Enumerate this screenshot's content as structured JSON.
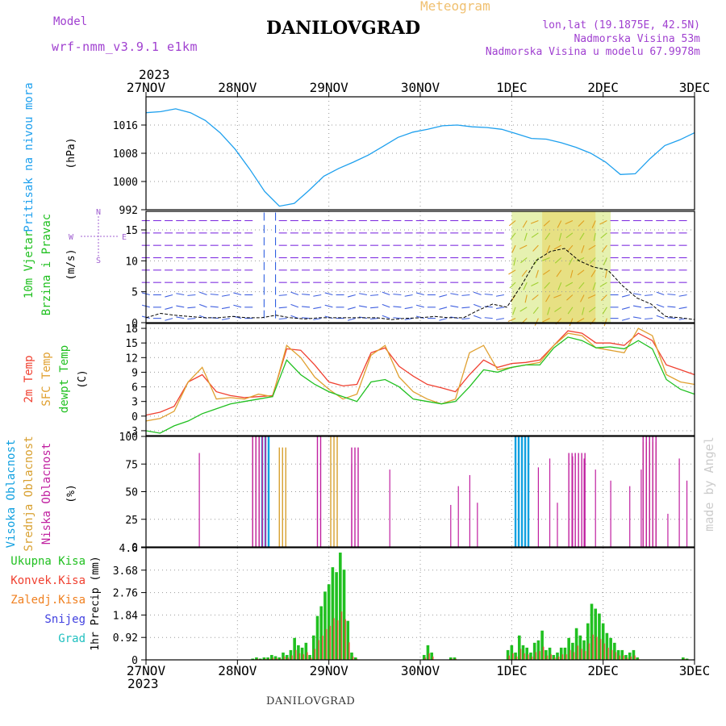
{
  "header": {
    "model_label": "Model",
    "model_name": "wrf-nmm_v3.9.1 e1km",
    "title": "DANILOVGRAD",
    "meteogram_label": "Meteogram",
    "lonlat": "lon,lat (19.1875E, 42.5N)",
    "elevation": "Nadmorska Visina 53m",
    "model_elevation": "Nadmorska Visina u modelu 67.9978m",
    "year_top": "2023",
    "year_bottom": "2023",
    "footer_station": "DANILOVGRAD",
    "credit": "made by Angel"
  },
  "colors": {
    "pressure": "#1ea0ee",
    "temp2m": "#f04030",
    "sfc_temp": "#e0a030",
    "dewpoint": "#20c020",
    "high_cloud": "#10a0e0",
    "mid_cloud": "#d8a030",
    "low_cloud": "#c020a0",
    "total_precip": "#20c020",
    "convective_precip": "#f04030",
    "freezing_precip": "#f08020",
    "snow": "#4040e0",
    "hail": "#20c0c0",
    "label_purple": "#9040d0"
  },
  "chart_data": [
    {
      "type": "line",
      "name": "pressure",
      "ylabel_main": "Pritisak na nivou mora",
      "unit": "(hPa)",
      "ylim": [
        992,
        1024
      ],
      "yticks": [
        "992",
        "1000",
        "1008",
        "1016"
      ],
      "xticks": [
        "27NOV",
        "28NOV",
        "29NOV",
        "30NOV",
        "1DEC",
        "2DEC",
        "3DEC"
      ],
      "grid": true,
      "series": [
        {
          "values": [
            1019.5,
            1019.8,
            1020.6,
            1019.5,
            1017.3,
            1013.8,
            1009.2,
            1003.5,
            997.2,
            993.0,
            993.8,
            997.5,
            1001.5,
            1003.7,
            1005.5,
            1007.5,
            1010.0,
            1012.5,
            1014.0,
            1014.8,
            1015.8,
            1016.0,
            1015.5,
            1015.3,
            1014.8,
            1013.5,
            1012.2,
            1012.0,
            1011.0,
            1009.7,
            1008.0,
            1005.5,
            1002.0,
            1002.2,
            1006.5,
            1010.2,
            1011.8,
            1013.8
          ]
        }
      ]
    },
    {
      "type": "line",
      "name": "wind",
      "ylabel_a": "10m Vjetar",
      "ylabel_b": "Brzina i Pravac",
      "unit": "(m/s)",
      "compass": [
        "N",
        "E",
        "S",
        "W"
      ],
      "ylim": [
        0,
        18
      ],
      "yticks": [
        "0",
        "5",
        "10",
        "15"
      ],
      "grid": true,
      "series": [
        {
          "values": [
            0.8,
            1.5,
            1.2,
            1.0,
            0.8,
            0.8,
            1.0,
            0.8,
            0.8,
            1.2,
            0.8,
            0.6,
            0.8,
            0.8,
            0.8,
            0.8,
            0.8,
            0.5,
            0.7,
            0.8,
            1.0,
            0.8,
            0.8,
            2.0,
            3.0,
            2.5,
            6.0,
            10.0,
            11.5,
            12.0,
            10.0,
            9.0,
            8.5,
            6.0,
            4.0,
            3.0,
            1.0,
            0.8,
            0.5
          ]
        }
      ]
    },
    {
      "type": "line",
      "name": "temperature",
      "ylabel_a": "2m Temp",
      "ylabel_b": "SFC Temp",
      "ylabel_c": "dewpt Temp",
      "unit": "(C)",
      "ylim": [
        -4,
        19
      ],
      "yticks": [
        "-3",
        "0",
        "3",
        "6",
        "9",
        "12",
        "15",
        "18"
      ],
      "grid": true,
      "series": [
        {
          "name": "2m Temp",
          "values": [
            0.2,
            0.8,
            2.0,
            7.0,
            8.5,
            5.0,
            4.2,
            3.8,
            4.0,
            4.2,
            13.8,
            13.5,
            10.5,
            7.0,
            6.2,
            6.5,
            13.0,
            14.0,
            10.2,
            8.2,
            6.5,
            5.8,
            5.0,
            8.5,
            11.5,
            10.0,
            10.8,
            11.0,
            11.5,
            14.5,
            17.5,
            17.0,
            15.0,
            15.0,
            14.5,
            17.0,
            15.5,
            10.5,
            9.5,
            8.5
          ]
        },
        {
          "name": "SFC Temp",
          "values": [
            -1.0,
            -0.5,
            1.0,
            7.0,
            10.0,
            3.5,
            3.8,
            3.5,
            4.5,
            4.0,
            14.5,
            12.0,
            8.0,
            5.5,
            3.5,
            4.5,
            12.5,
            14.5,
            8.0,
            5.0,
            3.5,
            2.5,
            3.5,
            13.0,
            14.5,
            9.5,
            10.0,
            10.5,
            11.0,
            14.5,
            17.0,
            16.5,
            14.0,
            13.5,
            13.0,
            18.0,
            16.5,
            8.5,
            7.0,
            6.5
          ]
        },
        {
          "name": "dewpt Temp",
          "values": [
            -3.0,
            -3.5,
            -2.0,
            -1.0,
            0.5,
            1.5,
            2.5,
            3.0,
            3.5,
            4.0,
            11.5,
            8.5,
            6.5,
            5.0,
            4.0,
            3.0,
            7.0,
            7.5,
            6.0,
            3.5,
            3.0,
            2.5,
            3.0,
            6.0,
            9.5,
            9.0,
            10.0,
            10.5,
            10.5,
            14.0,
            16.2,
            15.5,
            14.0,
            14.2,
            13.8,
            15.5,
            13.8,
            7.5,
            5.5,
            4.5
          ]
        }
      ]
    },
    {
      "type": "bar",
      "name": "cloud",
      "ylabel_a": "Visoka Oblacnost",
      "ylabel_b": "Srednja Oblacnost",
      "ylabel_c": "Niska Oblacnost",
      "unit": "(%)",
      "ylim": [
        0,
        100
      ],
      "yticks": [
        "0",
        "25",
        "50",
        "75",
        "100"
      ],
      "grid": true,
      "segments": [
        {
          "name": "Visoka Oblacnost",
          "from": 30.5,
          "to": 32.5,
          "value": 100
        },
        {
          "name": "Srednja Oblacnost",
          "from": 28.0,
          "to": 31.5,
          "value": 100
        },
        {
          "name": "Niska Oblacnost",
          "from": 28.0,
          "to": 31.5,
          "value": 100
        },
        {
          "name": "Srednja Oblacnost",
          "from": 35.0,
          "to": 37.2,
          "value": 90
        },
        {
          "name": "Niska Oblacnost",
          "from": 45.0,
          "to": 46.5,
          "value": 100
        },
        {
          "name": "Srednja Oblacnost",
          "from": 48.5,
          "to": 50.5,
          "value": 100
        },
        {
          "name": "Niska Oblacnost",
          "from": 54.0,
          "to": 56.5,
          "value": 90
        },
        {
          "name": "Visoka Oblacnost",
          "from": 97.0,
          "to": 101.0,
          "value": 100
        },
        {
          "name": "Niska Oblacnost",
          "from": 111.0,
          "to": 116.0,
          "value": 85
        },
        {
          "name": "Srednja Oblacnost",
          "from": 130.5,
          "to": 134.0,
          "value": 95
        },
        {
          "name": "Niska Oblacnost",
          "from": 130.5,
          "to": 134.0,
          "value": 100
        }
      ]
    },
    {
      "type": "bar",
      "name": "precipitation",
      "legend": [
        "Ukupna Kisa",
        "Konvek.Kisa",
        "Zaledj.Kisa",
        "Snijeg",
        "Grad"
      ],
      "unit": "1hr Precip (mm)",
      "ylim": [
        0,
        4.6
      ],
      "yticks": [
        "0",
        "0.92",
        "1.84",
        "2.76",
        "3.68",
        "4.6"
      ],
      "grid": true,
      "values": [
        [
          28.0,
          0.05
        ],
        [
          29.0,
          0.1
        ],
        [
          30.0,
          0.05
        ],
        [
          31.0,
          0.1
        ],
        [
          32.0,
          0.1
        ],
        [
          33.0,
          0.2
        ],
        [
          34.0,
          0.15
        ],
        [
          35.0,
          0.1
        ],
        [
          36.0,
          0.3
        ],
        [
          37.0,
          0.2
        ],
        [
          38.0,
          0.4
        ],
        [
          39.0,
          0.9
        ],
        [
          40.0,
          0.6
        ],
        [
          41.0,
          0.5
        ],
        [
          42.0,
          0.7
        ],
        [
          43.0,
          0.2
        ],
        [
          44.0,
          1.0
        ],
        [
          45.0,
          1.8
        ],
        [
          46.0,
          2.2
        ],
        [
          47.0,
          2.8
        ],
        [
          48.0,
          3.1
        ],
        [
          49.0,
          3.8
        ],
        [
          50.0,
          3.6
        ],
        [
          51.0,
          4.4
        ],
        [
          52.0,
          3.7
        ],
        [
          53.0,
          1.6
        ],
        [
          54.0,
          0.3
        ],
        [
          55.0,
          0.1
        ],
        [
          73.0,
          0.2
        ],
        [
          74.0,
          0.6
        ],
        [
          75.0,
          0.3
        ],
        [
          80.0,
          0.1
        ],
        [
          81.0,
          0.1
        ],
        [
          95.0,
          0.4
        ],
        [
          96.0,
          0.6
        ],
        [
          97.0,
          0.3
        ],
        [
          98.0,
          1.0
        ],
        [
          99.0,
          0.6
        ],
        [
          100.0,
          0.5
        ],
        [
          101.0,
          0.3
        ],
        [
          102.0,
          0.7
        ],
        [
          103.0,
          0.8
        ],
        [
          104.0,
          1.2
        ],
        [
          105.0,
          0.4
        ],
        [
          106.0,
          0.5
        ],
        [
          107.0,
          0.2
        ],
        [
          108.0,
          0.3
        ],
        [
          109.0,
          0.5
        ],
        [
          110.0,
          0.5
        ],
        [
          111.0,
          0.9
        ],
        [
          112.0,
          0.7
        ],
        [
          113.0,
          1.3
        ],
        [
          114.0,
          1.0
        ],
        [
          115.0,
          0.8
        ],
        [
          116.0,
          1.5
        ],
        [
          117.0,
          2.3
        ],
        [
          118.0,
          2.1
        ],
        [
          119.0,
          1.9
        ],
        [
          120.0,
          1.5
        ],
        [
          121.0,
          1.1
        ],
        [
          122.0,
          0.9
        ],
        [
          123.0,
          0.7
        ],
        [
          124.0,
          0.4
        ],
        [
          125.0,
          0.4
        ],
        [
          126.0,
          0.2
        ],
        [
          127.0,
          0.3
        ],
        [
          128.0,
          0.4
        ],
        [
          129.0,
          0.1
        ],
        [
          141.0,
          0.1
        ],
        [
          142.0,
          0.05
        ]
      ]
    }
  ]
}
